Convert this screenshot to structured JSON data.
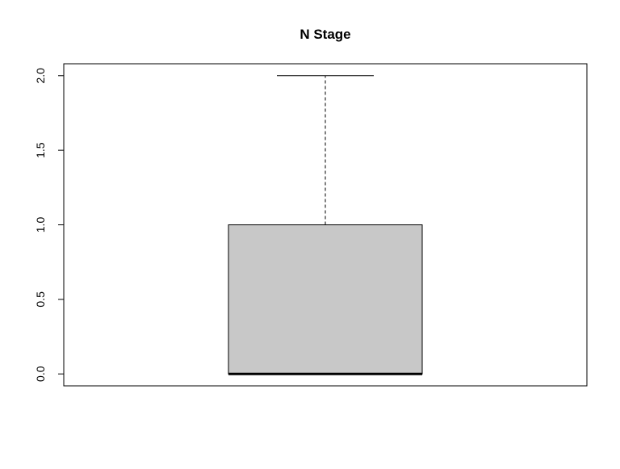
{
  "chart_data": {
    "type": "box",
    "title": "N Stage",
    "xlabel": "",
    "ylabel": "",
    "ylim": [
      -0.08,
      2.08
    ],
    "yticks": [
      0.0,
      0.5,
      1.0,
      1.5,
      2.0
    ],
    "ytick_labels": [
      "0.0",
      "0.5",
      "1.0",
      "1.5",
      "2.0"
    ],
    "grid": false,
    "boxes": [
      {
        "min": 0,
        "q1": 0,
        "median": 0,
        "q3": 1,
        "max": 2
      }
    ],
    "colors": {
      "box_fill": "#c8c8c8",
      "stroke": "#000000",
      "background": "#ffffff"
    }
  }
}
